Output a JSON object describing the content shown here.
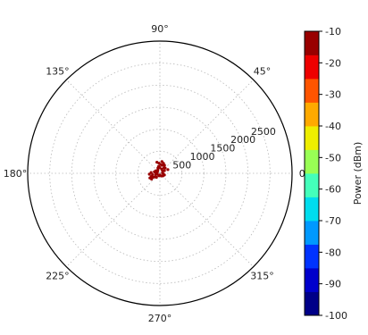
{
  "chart_data": {
    "type": "scatter",
    "projection": "polar",
    "theta_unit": "degrees",
    "theta_tick_labels": [
      "0°",
      "45°",
      "90°",
      "135°",
      "180°",
      "225°",
      "270°",
      "315°"
    ],
    "theta_ticks": [
      0,
      45,
      90,
      135,
      180,
      225,
      270,
      315
    ],
    "r_tick_labels": [
      "500",
      "1000",
      "1500",
      "2000",
      "2500"
    ],
    "r_ticks": [
      500,
      1000,
      1500,
      2000,
      2500
    ],
    "rlim": [
      0,
      3000
    ],
    "r_label_angle": 22.5,
    "grid": true,
    "points": [
      {
        "theta": 150,
        "r": 110,
        "power": -12
      },
      {
        "theta": 165,
        "r": 130,
        "power": -14
      },
      {
        "theta": 170,
        "r": 90,
        "power": -13
      },
      {
        "theta": 190,
        "r": 170,
        "power": -12
      },
      {
        "theta": 200,
        "r": 210,
        "power": -15
      },
      {
        "theta": 205,
        "r": 250,
        "power": -13
      },
      {
        "theta": 210,
        "r": 180,
        "power": -14
      },
      {
        "theta": 215,
        "r": 140,
        "power": -12
      },
      {
        "theta": 180,
        "r": 60,
        "power": -11
      },
      {
        "theta": 195,
        "r": 100,
        "power": -13
      },
      {
        "theta": 230,
        "r": 120,
        "power": -12
      },
      {
        "theta": 250,
        "r": 60,
        "power": -11
      },
      {
        "theta": 270,
        "r": 40,
        "power": -12
      },
      {
        "theta": 300,
        "r": 70,
        "power": -13
      },
      {
        "theta": 320,
        "r": 90,
        "power": -12
      },
      {
        "theta": 340,
        "r": 110,
        "power": -14
      },
      {
        "theta": 350,
        "r": 80,
        "power": -11
      },
      {
        "theta": 10,
        "r": 60,
        "power": -12
      },
      {
        "theta": 30,
        "r": 120,
        "power": -13
      },
      {
        "theta": 45,
        "r": 170,
        "power": -12
      },
      {
        "theta": 55,
        "r": 150,
        "power": -11
      },
      {
        "theta": 60,
        "r": 210,
        "power": -13
      },
      {
        "theta": 70,
        "r": 240,
        "power": -12
      },
      {
        "theta": 75,
        "r": 190,
        "power": -14
      },
      {
        "theta": 80,
        "r": 270,
        "power": -12
      },
      {
        "theta": 85,
        "r": 200,
        "power": -13
      },
      {
        "theta": 95,
        "r": 230,
        "power": -12
      },
      {
        "theta": 100,
        "r": 160,
        "power": -14
      },
      {
        "theta": 110,
        "r": 130,
        "power": -12
      },
      {
        "theta": 120,
        "r": 90,
        "power": -11
      },
      {
        "theta": 135,
        "r": 70,
        "power": -13
      },
      {
        "theta": 25,
        "r": 200,
        "power": -12
      },
      {
        "theta": 40,
        "r": 80,
        "power": -12
      },
      {
        "theta": 65,
        "r": 100,
        "power": -11
      },
      {
        "theta": 90,
        "r": 130,
        "power": -12
      },
      {
        "theta": 105,
        "r": 260,
        "power": -13
      },
      {
        "theta": 200,
        "r": 70,
        "power": -12
      },
      {
        "theta": 215,
        "r": 230,
        "power": -14
      },
      {
        "theta": 185,
        "r": 240,
        "power": -13
      },
      {
        "theta": 175,
        "r": 200,
        "power": -12
      }
    ],
    "colorbar": {
      "label": "Power (dBm)",
      "range": [
        -100,
        -10
      ],
      "tick_labels": [
        "-10",
        "-20",
        "-30",
        "-40",
        "-50",
        "-60",
        "-70",
        "-80",
        "-90",
        "-100"
      ],
      "ticks": [
        -10,
        -20,
        -30,
        -40,
        -50,
        -60,
        -70,
        -80,
        -90,
        -100
      ],
      "colormap": "jet",
      "colors": [
        "#000088",
        "#0000cc",
        "#0033ff",
        "#0099ff",
        "#00ddee",
        "#44ffbb",
        "#99ff55",
        "#eeee00",
        "#ffaa00",
        "#ff5500",
        "#ee0000",
        "#990000"
      ]
    }
  }
}
